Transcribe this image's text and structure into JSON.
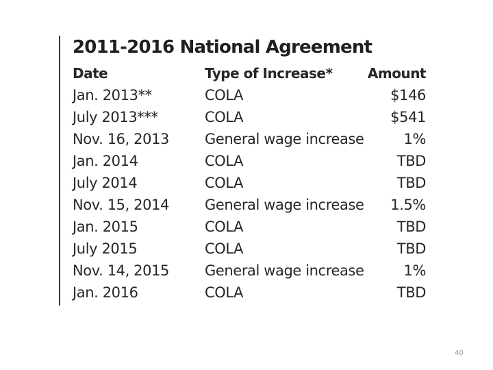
{
  "title": "2011-2016 National Agreement",
  "table": {
    "headers": {
      "date": "Date",
      "type": "Type of Increase*",
      "amount": "Amount"
    },
    "rows": [
      {
        "date": "Jan. 2013**",
        "type": "COLA",
        "amount": "$146"
      },
      {
        "date": "July 2013***",
        "type": "COLA",
        "amount": "$541"
      },
      {
        "date": "Nov. 16, 2013",
        "type": "General wage increase",
        "amount": "1%"
      },
      {
        "date": "Jan. 2014",
        "type": "COLA",
        "amount": "TBD"
      },
      {
        "date": "July 2014",
        "type": "COLA",
        "amount": "TBD"
      },
      {
        "date": "Nov. 15, 2014",
        "type": "General wage increase",
        "amount": "1.5%"
      },
      {
        "date": "Jan. 2015",
        "type": "COLA",
        "amount": "TBD"
      },
      {
        "date": "July 2015",
        "type": "COLA",
        "amount": "TBD"
      },
      {
        "date": "Nov. 14, 2015",
        "type": "General wage increase",
        "amount": "1%"
      },
      {
        "date": "Jan. 2016",
        "type": "COLA",
        "amount": "TBD"
      }
    ]
  },
  "page_number": "40"
}
